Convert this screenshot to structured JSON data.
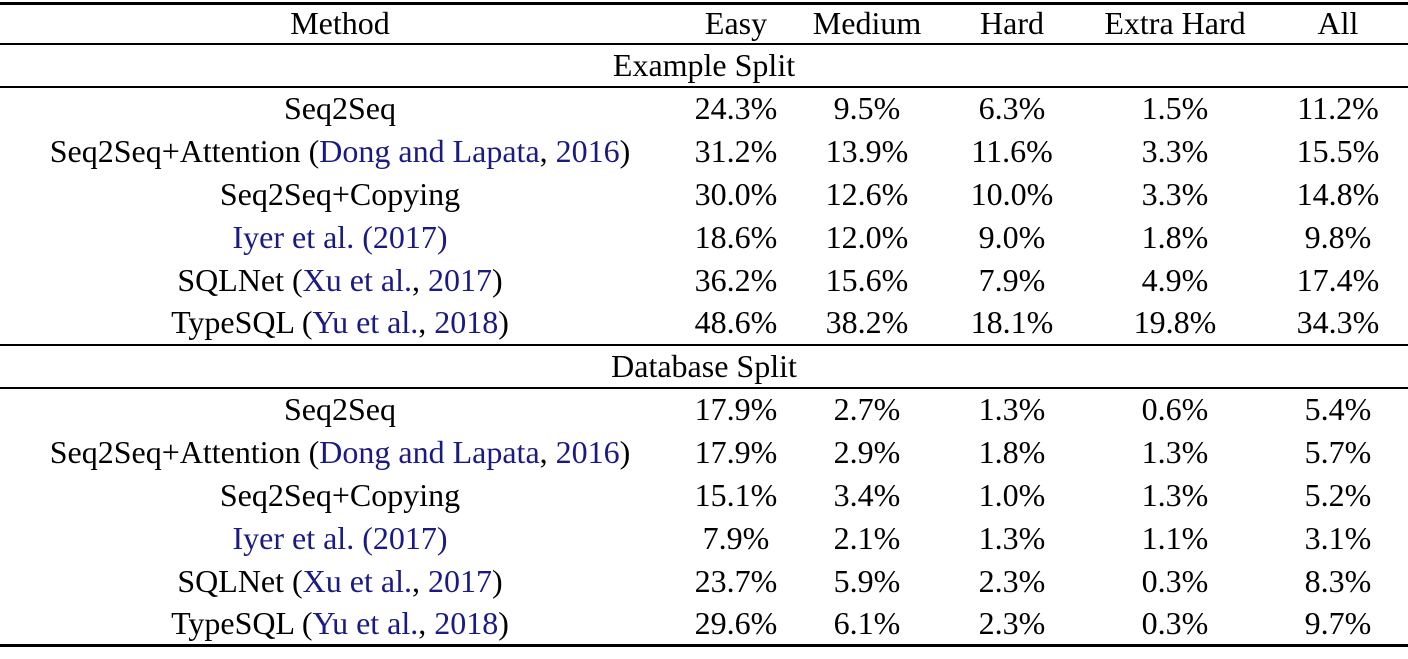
{
  "page": {
    "background_color": "#ffffff",
    "text_color": "#000000",
    "citation_color": "#1a1a85"
  },
  "table": {
    "columns": [
      "Method",
      "Easy",
      "Medium",
      "Hard",
      "Extra Hard",
      "All"
    ],
    "sections": [
      {
        "title": "Example Split",
        "rows": [
          {
            "method": [
              {
                "text": "Seq2Seq",
                "cite": false
              }
            ],
            "values": [
              "24.3%",
              "9.5%",
              "6.3%",
              "1.5%",
              "11.2%"
            ]
          },
          {
            "method": [
              {
                "text": "Seq2Seq+Attention (",
                "cite": false
              },
              {
                "text": "Dong and Lapata",
                "cite": true
              },
              {
                "text": ", ",
                "cite": false
              },
              {
                "text": "2016",
                "cite": true
              },
              {
                "text": ")",
                "cite": false
              }
            ],
            "values": [
              "31.2%",
              "13.9%",
              "11.6%",
              "3.3%",
              "15.5%"
            ]
          },
          {
            "method": [
              {
                "text": "Seq2Seq+Copying",
                "cite": false
              }
            ],
            "values": [
              "30.0%",
              "12.6%",
              "10.0%",
              "3.3%",
              "14.8%"
            ]
          },
          {
            "method": [
              {
                "text": "Iyer et al. (2017)",
                "cite": true
              }
            ],
            "values": [
              "18.6%",
              "12.0%",
              "9.0%",
              "1.8%",
              "9.8%"
            ]
          },
          {
            "method": [
              {
                "text": "SQLNet (",
                "cite": false
              },
              {
                "text": "Xu et al.",
                "cite": true
              },
              {
                "text": ", ",
                "cite": false
              },
              {
                "text": "2017",
                "cite": true
              },
              {
                "text": ")",
                "cite": false
              }
            ],
            "values": [
              "36.2%",
              "15.6%",
              "7.9%",
              "4.9%",
              "17.4%"
            ]
          },
          {
            "method": [
              {
                "text": "TypeSQL (",
                "cite": false
              },
              {
                "text": "Yu et al.",
                "cite": true
              },
              {
                "text": ", ",
                "cite": false
              },
              {
                "text": "2018",
                "cite": true
              },
              {
                "text": ")",
                "cite": false
              }
            ],
            "values": [
              "48.6%",
              "38.2%",
              "18.1%",
              "19.8%",
              "34.3%"
            ]
          }
        ]
      },
      {
        "title": "Database Split",
        "rows": [
          {
            "method": [
              {
                "text": "Seq2Seq",
                "cite": false
              }
            ],
            "values": [
              "17.9%",
              "2.7%",
              "1.3%",
              "0.6%",
              "5.4%"
            ]
          },
          {
            "method": [
              {
                "text": "Seq2Seq+Attention (",
                "cite": false
              },
              {
                "text": "Dong and Lapata",
                "cite": true
              },
              {
                "text": ", ",
                "cite": false
              },
              {
                "text": "2016",
                "cite": true
              },
              {
                "text": ")",
                "cite": false
              }
            ],
            "values": [
              "17.9%",
              "2.9%",
              "1.8%",
              "1.3%",
              "5.7%"
            ]
          },
          {
            "method": [
              {
                "text": "Seq2Seq+Copying",
                "cite": false
              }
            ],
            "values": [
              "15.1%",
              "3.4%",
              "1.0%",
              "1.3%",
              "5.2%"
            ]
          },
          {
            "method": [
              {
                "text": "Iyer et al. (2017)",
                "cite": true
              }
            ],
            "values": [
              "7.9%",
              "2.1%",
              "1.3%",
              "1.1%",
              "3.1%"
            ]
          },
          {
            "method": [
              {
                "text": "SQLNet (",
                "cite": false
              },
              {
                "text": "Xu et al.",
                "cite": true
              },
              {
                "text": ", ",
                "cite": false
              },
              {
                "text": "2017",
                "cite": true
              },
              {
                "text": ")",
                "cite": false
              }
            ],
            "values": [
              "23.7%",
              "5.9%",
              "2.3%",
              "0.3%",
              "8.3%"
            ]
          },
          {
            "method": [
              {
                "text": "TypeSQL (",
                "cite": false
              },
              {
                "text": "Yu et al.",
                "cite": true
              },
              {
                "text": ", ",
                "cite": false
              },
              {
                "text": "2018",
                "cite": true
              },
              {
                "text": ")",
                "cite": false
              }
            ],
            "values": [
              "29.6%",
              "6.1%",
              "2.3%",
              "0.3%",
              "9.7%"
            ]
          }
        ]
      }
    ]
  }
}
